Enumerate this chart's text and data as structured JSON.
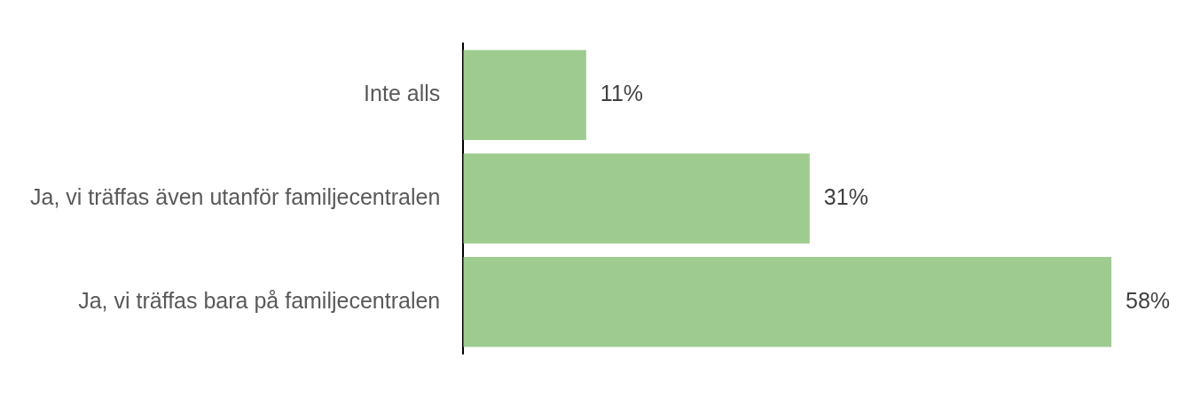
{
  "chart_data": {
    "type": "bar",
    "orientation": "horizontal",
    "categories": [
      "Inte alls",
      "Ja, vi träffas även utanför familjecentralen",
      "Ja, vi träffas bara på familjecentralen"
    ],
    "values": [
      11,
      31,
      58
    ],
    "value_labels": [
      "11%",
      "31%",
      "58%"
    ],
    "color": "#9dcc8e",
    "grid": false,
    "legend": false,
    "tick_labels": "y"
  }
}
